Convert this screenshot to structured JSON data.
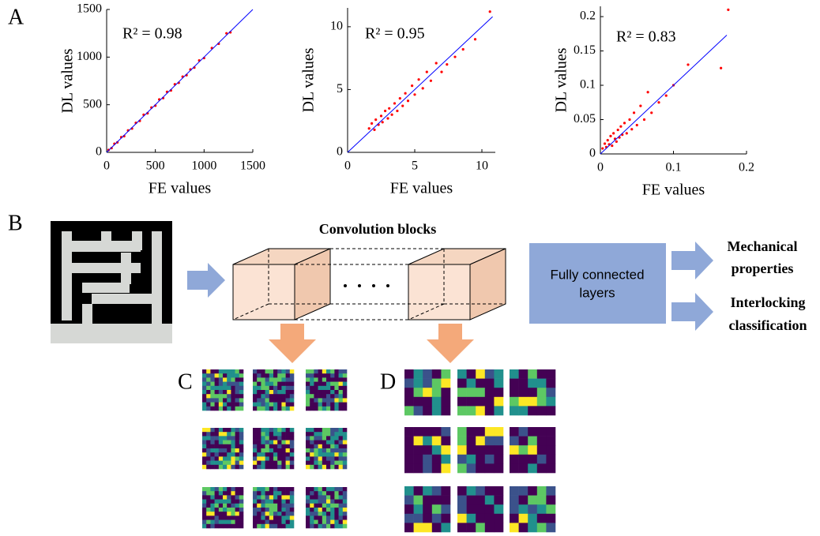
{
  "chart_data": [
    {
      "type": "scatter",
      "xlabel": "FE values",
      "ylabel": "DL values",
      "annotation": "R² = 0.98",
      "color": "#ff0000",
      "xlim": [
        0,
        1500
      ],
      "ylim": [
        0,
        1500
      ],
      "xticks": [
        0,
        500,
        1000,
        1500
      ],
      "yticks": [
        0,
        500,
        1000,
        1500
      ],
      "x": [
        20,
        50,
        80,
        110,
        150,
        180,
        220,
        260,
        300,
        340,
        380,
        420,
        460,
        500,
        540,
        580,
        620,
        660,
        700,
        740,
        780,
        820,
        860,
        900,
        950,
        1000,
        1080,
        1150,
        1230,
        1270
      ],
      "y": [
        25,
        45,
        90,
        105,
        160,
        170,
        230,
        250,
        310,
        330,
        395,
        410,
        470,
        490,
        555,
        570,
        635,
        650,
        715,
        730,
        795,
        810,
        870,
        890,
        965,
        990,
        1095,
        1140,
        1250,
        1260
      ],
      "fit_line": {
        "x": [
          0,
          1500
        ],
        "y": [
          0,
          1500
        ],
        "color": "#0000ff"
      }
    },
    {
      "type": "scatter",
      "xlabel": "FE values",
      "ylabel": "DL values",
      "annotation": "R² = 0.95",
      "color": "#ff0000",
      "xlim": [
        0,
        11
      ],
      "ylim": [
        0,
        11.5
      ],
      "xticks": [
        0,
        5,
        10
      ],
      "yticks": [
        0,
        5,
        10
      ],
      "x": [
        1.6,
        1.8,
        2.0,
        2.1,
        2.3,
        2.5,
        2.6,
        2.8,
        3.0,
        3.1,
        3.3,
        3.5,
        3.7,
        3.9,
        4.1,
        4.3,
        4.5,
        4.8,
        5.0,
        5.3,
        5.6,
        5.9,
        6.2,
        6.6,
        7.0,
        7.4,
        8.0,
        8.6,
        9.5,
        10.6
      ],
      "y": [
        1.9,
        2.3,
        1.8,
        2.6,
        2.2,
        2.9,
        2.4,
        3.3,
        2.7,
        3.5,
        3.0,
        3.9,
        3.3,
        4.3,
        3.7,
        4.7,
        4.1,
        5.3,
        4.6,
        5.8,
        5.1,
        6.4,
        5.7,
        7.1,
        6.4,
        7.0,
        7.6,
        8.2,
        9.0,
        11.2
      ],
      "fit_line": {
        "x": [
          0,
          10.8
        ],
        "y": [
          0,
          10.8
        ],
        "color": "#0000ff"
      }
    },
    {
      "type": "scatter",
      "xlabel": "FE values",
      "ylabel": "DL values",
      "annotation": "R² = 0.83",
      "color": "#ff0000",
      "xlim": [
        0,
        0.2
      ],
      "ylim": [
        0,
        0.215
      ],
      "xticks": [
        0,
        0.1,
        0.2
      ],
      "yticks": [
        0,
        0.05,
        0.1,
        0.15,
        0.2
      ],
      "x": [
        0.003,
        0.006,
        0.008,
        0.01,
        0.012,
        0.014,
        0.016,
        0.018,
        0.02,
        0.022,
        0.024,
        0.026,
        0.028,
        0.03,
        0.033,
        0.036,
        0.04,
        0.043,
        0.046,
        0.05,
        0.055,
        0.06,
        0.065,
        0.07,
        0.08,
        0.09,
        0.1,
        0.12,
        0.165,
        0.175
      ],
      "y": [
        0.008,
        0.015,
        0.01,
        0.02,
        0.014,
        0.026,
        0.012,
        0.03,
        0.022,
        0.018,
        0.035,
        0.024,
        0.04,
        0.028,
        0.045,
        0.03,
        0.05,
        0.036,
        0.06,
        0.042,
        0.07,
        0.05,
        0.09,
        0.06,
        0.075,
        0.085,
        0.1,
        0.13,
        0.125,
        0.21
      ],
      "fit_line": {
        "x": [
          0,
          0.173
        ],
        "y": [
          0,
          0.173
        ],
        "color": "#0000ff"
      }
    }
  ],
  "diagram": {
    "panel_labels": [
      "A",
      "B",
      "C",
      "D"
    ],
    "conv_title": "Convolution blocks",
    "fc_label": [
      "Fully connected",
      "layers"
    ],
    "outputs": [
      [
        "Mechanical",
        "properties"
      ],
      [
        "Interlocking",
        "classification"
      ]
    ]
  }
}
